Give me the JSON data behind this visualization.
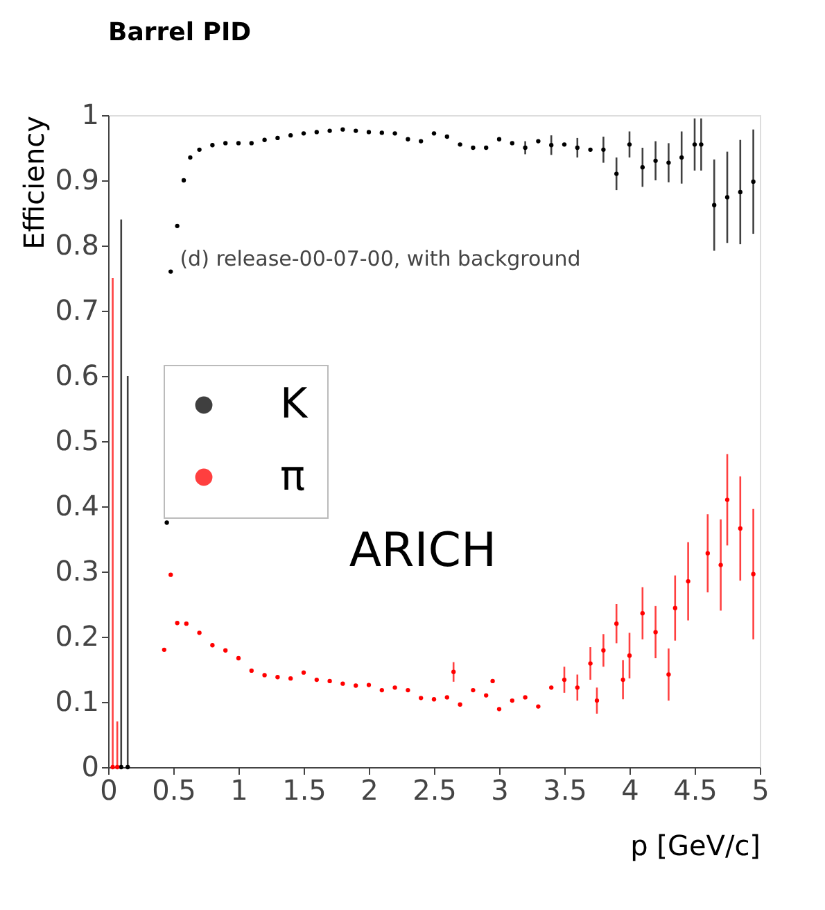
{
  "chart_data": {
    "type": "scatter",
    "title": "Barrel PID",
    "xlabel": "p  [GeV/c]",
    "ylabel": "Efficiency",
    "annotations": [
      "(d) release-00-07-00, with background",
      "ARICH"
    ],
    "xlim": [
      0,
      5
    ],
    "ylim": [
      0,
      1
    ],
    "xticks": [
      0,
      0.5,
      1,
      1.5,
      2,
      2.5,
      3,
      3.5,
      4,
      4.5,
      5
    ],
    "yticks": [
      0,
      0.1,
      0.2,
      0.3,
      0.4,
      0.5,
      0.6,
      0.7,
      0.8,
      0.9,
      1
    ],
    "grid": false,
    "legend": "left",
    "marker": "circle",
    "series": [
      {
        "name": "K",
        "color": "#000000",
        "x": [
          0.1,
          0.15,
          0.45,
          0.48,
          0.53,
          0.58,
          0.63,
          0.7,
          0.8,
          0.9,
          1.0,
          1.1,
          1.2,
          1.3,
          1.4,
          1.5,
          1.6,
          1.7,
          1.8,
          1.9,
          2.0,
          2.1,
          2.2,
          2.3,
          2.4,
          2.5,
          2.6,
          2.7,
          2.8,
          2.9,
          3.0,
          3.1,
          3.2,
          3.3,
          3.4,
          3.5,
          3.6,
          3.7,
          3.8,
          3.9,
          4.0,
          4.1,
          4.2,
          4.3,
          4.4,
          4.5,
          4.55,
          4.65,
          4.75,
          4.85,
          4.95
        ],
        "values": [
          0,
          0,
          0.375,
          0.76,
          0.83,
          0.9,
          0.935,
          0.947,
          0.954,
          0.957,
          0.957,
          0.957,
          0.962,
          0.965,
          0.969,
          0.972,
          0.974,
          0.976,
          0.978,
          0.976,
          0.974,
          0.973,
          0.972,
          0.963,
          0.96,
          0.972,
          0.967,
          0.955,
          0.95,
          0.95,
          0.963,
          0.957,
          0.95,
          0.96,
          0.954,
          0.955,
          0.95,
          0.947,
          0.947,
          0.91,
          0.955,
          0.92,
          0.93,
          0.927,
          0.935,
          0.955,
          0.955,
          0.862,
          0.874,
          0.882,
          0.898
        ],
        "errors": [
          [
            0,
            0.84
          ],
          [
            0,
            0.6
          ],
          null,
          null,
          null,
          null,
          null,
          null,
          null,
          null,
          null,
          null,
          null,
          null,
          null,
          null,
          null,
          null,
          null,
          null,
          null,
          null,
          null,
          null,
          null,
          null,
          null,
          null,
          null,
          null,
          null,
          null,
          0.01,
          null,
          0.015,
          null,
          0.015,
          null,
          0.02,
          0.025,
          0.02,
          0.03,
          0.03,
          0.03,
          0.04,
          0.04,
          0.04,
          0.07,
          0.07,
          0.08,
          0.08
        ]
      },
      {
        "name": "π",
        "color": "#ff0000",
        "x": [
          0.035,
          0.07,
          0.43,
          0.48,
          0.53,
          0.6,
          0.7,
          0.8,
          0.9,
          1.0,
          1.1,
          1.2,
          1.3,
          1.4,
          1.5,
          1.6,
          1.7,
          1.8,
          1.9,
          2.0,
          2.1,
          2.2,
          2.3,
          2.4,
          2.5,
          2.6,
          2.65,
          2.7,
          2.8,
          2.9,
          2.95,
          3.0,
          3.1,
          3.2,
          3.3,
          3.4,
          3.5,
          3.6,
          3.7,
          3.75,
          3.8,
          3.9,
          3.95,
          4.0,
          4.1,
          4.2,
          4.3,
          4.35,
          4.45,
          4.6,
          4.7,
          4.75,
          4.85,
          4.95
        ],
        "values": [
          0,
          0,
          0.18,
          0.295,
          0.221,
          0.22,
          0.206,
          0.187,
          0.179,
          0.167,
          0.148,
          0.141,
          0.138,
          0.136,
          0.145,
          0.134,
          0.132,
          0.128,
          0.125,
          0.126,
          0.118,
          0.122,
          0.118,
          0.106,
          0.104,
          0.107,
          0.146,
          0.096,
          0.118,
          0.11,
          0.132,
          0.089,
          0.102,
          0.107,
          0.093,
          0.122,
          0.134,
          0.122,
          0.159,
          0.102,
          0.179,
          0.22,
          0.134,
          0.171,
          0.236,
          0.207,
          0.142,
          0.244,
          0.285,
          0.328,
          0.31,
          0.41,
          0.366,
          0.296
        ],
        "errors": [
          [
            0,
            0.75
          ],
          [
            0,
            0.07
          ],
          null,
          null,
          null,
          null,
          null,
          null,
          null,
          null,
          null,
          null,
          null,
          null,
          null,
          null,
          null,
          null,
          null,
          null,
          null,
          null,
          null,
          null,
          null,
          null,
          0.015,
          null,
          null,
          null,
          null,
          null,
          null,
          null,
          null,
          null,
          0.02,
          0.02,
          0.025,
          0.02,
          0.025,
          0.03,
          0.03,
          0.035,
          0.04,
          0.04,
          0.04,
          0.05,
          0.06,
          0.06,
          0.07,
          0.07,
          0.08,
          0.1
        ]
      }
    ]
  }
}
